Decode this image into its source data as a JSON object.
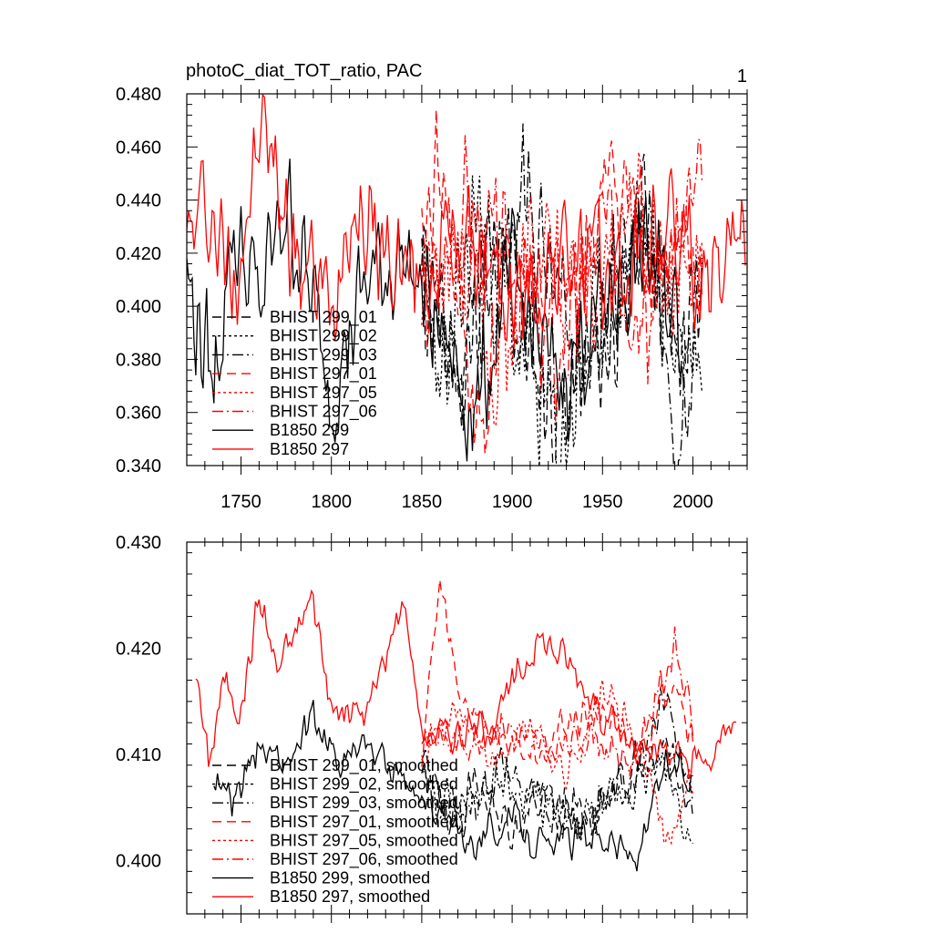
{
  "title_left": "photoC_diat_TOT_ratio, PAC",
  "title_right": "1",
  "colors": {
    "black": "#000000",
    "red": "#ff0000"
  },
  "chart_data": [
    {
      "type": "line",
      "panel": "top",
      "title": "photoC_diat_TOT_ratio, PAC",
      "xlabel": "",
      "ylabel": "",
      "xlim": [
        1720,
        2030
      ],
      "ylim": [
        0.34,
        0.48
      ],
      "xticks": [
        1750,
        1800,
        1850,
        1900,
        1950,
        2000
      ],
      "xtick_labels": [
        "1750",
        "1800",
        "1850",
        "1900",
        "1950",
        "2000"
      ],
      "yticks": [
        0.34,
        0.36,
        0.38,
        0.4,
        0.42,
        0.44,
        0.46,
        0.48
      ],
      "ytick_labels": [
        "0.340",
        "0.360",
        "0.380",
        "0.400",
        "0.420",
        "0.440",
        "0.460",
        "0.480"
      ],
      "legend_position": "bottom-left",
      "series": [
        {
          "name": "BHIST 299_01",
          "color": "#000000",
          "dash": "10,6",
          "x_start": 1850,
          "x_end": 2005,
          "keypoints": [
            [
              1850,
              0.41
            ],
            [
              1860,
              0.39
            ],
            [
              1870,
              0.37
            ],
            [
              1885,
              0.42
            ],
            [
              1900,
              0.4
            ],
            [
              1925,
              0.36
            ],
            [
              1950,
              0.38
            ],
            [
              1975,
              0.44
            ],
            [
              1990,
              0.38
            ],
            [
              2005,
              0.4
            ]
          ],
          "mean": 0.402,
          "amp": 0.035,
          "seed": 11
        },
        {
          "name": "BHIST 299_02",
          "color": "#000000",
          "dash": "3,3",
          "x_start": 1850,
          "x_end": 2005,
          "keypoints": [
            [
              1850,
              0.4
            ],
            [
              1865,
              0.37
            ],
            [
              1880,
              0.44
            ],
            [
              1900,
              0.39
            ],
            [
              1926,
              0.346
            ],
            [
              1950,
              0.4
            ],
            [
              1970,
              0.43
            ],
            [
              1990,
              0.39
            ],
            [
              2005,
              0.38
            ]
          ],
          "mean": 0.4,
          "amp": 0.035,
          "seed": 23
        },
        {
          "name": "BHIST 299_03",
          "color": "#000000",
          "dash": "12,4,2,4",
          "x_start": 1850,
          "x_end": 2005,
          "keypoints": [
            [
              1850,
              0.41
            ],
            [
              1870,
              0.36
            ],
            [
              1890,
              0.42
            ],
            [
              1910,
              0.44
            ],
            [
              1935,
              0.38
            ],
            [
              1955,
              0.41
            ],
            [
              1975,
              0.43
            ],
            [
              1990,
              0.346
            ],
            [
              2005,
              0.4
            ]
          ],
          "mean": 0.401,
          "amp": 0.035,
          "seed": 37
        },
        {
          "name": "BHIST 297_01",
          "color": "#ff0000",
          "dash": "10,6",
          "x_start": 1850,
          "x_end": 2005,
          "keypoints": [
            [
              1850,
              0.42
            ],
            [
              1860,
              0.46
            ],
            [
              1870,
              0.4
            ],
            [
              1882,
              0.35
            ],
            [
              1900,
              0.42
            ],
            [
              1930,
              0.4
            ],
            [
              1957,
              0.45
            ],
            [
              1980,
              0.42
            ],
            [
              2005,
              0.41
            ]
          ],
          "mean": 0.41,
          "amp": 0.032,
          "seed": 41
        },
        {
          "name": "BHIST 297_05",
          "color": "#ff0000",
          "dash": "3,3",
          "x_start": 1850,
          "x_end": 2005,
          "keypoints": [
            [
              1850,
              0.41
            ],
            [
              1870,
              0.43
            ],
            [
              1890,
              0.37
            ],
            [
              1910,
              0.42
            ],
            [
              1940,
              0.4
            ],
            [
              1965,
              0.44
            ],
            [
              1985,
              0.41
            ],
            [
              2005,
              0.42
            ]
          ],
          "mean": 0.41,
          "amp": 0.032,
          "seed": 53
        },
        {
          "name": "BHIST 297_06",
          "color": "#ff0000",
          "dash": "12,4,2,4",
          "x_start": 1850,
          "x_end": 2005,
          "keypoints": [
            [
              1850,
              0.4
            ],
            [
              1875,
              0.44
            ],
            [
              1900,
              0.41
            ],
            [
              1925,
              0.38
            ],
            [
              1950,
              0.43
            ],
            [
              1975,
              0.4
            ],
            [
              2005,
              0.45
            ]
          ],
          "mean": 0.41,
          "amp": 0.032,
          "seed": 67
        },
        {
          "name": "B1850 299",
          "color": "#000000",
          "dash": "",
          "x_start": 1720,
          "x_end": 1995,
          "keypoints": [
            [
              1720,
              0.41
            ],
            [
              1735,
              0.37
            ],
            [
              1745,
              0.43
            ],
            [
              1760,
              0.4
            ],
            [
              1775,
              0.44
            ],
            [
              1790,
              0.4
            ],
            [
              1800,
              0.37
            ],
            [
              1820,
              0.41
            ],
            [
              1840,
              0.42
            ],
            [
              1860,
              0.39
            ],
            [
              1880,
              0.36
            ],
            [
              1900,
              0.41
            ],
            [
              1925,
              0.37
            ],
            [
              1950,
              0.4
            ],
            [
              1975,
              0.42
            ],
            [
              1995,
              0.39
            ]
          ],
          "mean": 0.403,
          "amp": 0.03,
          "seed": 79
        },
        {
          "name": "B1850 297",
          "color": "#ff0000",
          "dash": "",
          "x_start": 1720,
          "x_end": 2029,
          "keypoints": [
            [
              1720,
              0.42
            ],
            [
              1730,
              0.44
            ],
            [
              1745,
              0.41
            ],
            [
              1763,
              0.468
            ],
            [
              1780,
              0.42
            ],
            [
              1800,
              0.4
            ],
            [
              1810,
              0.44
            ],
            [
              1830,
              0.42
            ],
            [
              1850,
              0.41
            ],
            [
              1870,
              0.43
            ],
            [
              1900,
              0.4
            ],
            [
              1930,
              0.42
            ],
            [
              1960,
              0.41
            ],
            [
              1990,
              0.43
            ],
            [
              2010,
              0.4
            ],
            [
              2029,
              0.43
            ]
          ],
          "mean": 0.413,
          "amp": 0.028,
          "seed": 97
        }
      ]
    },
    {
      "type": "line",
      "panel": "bottom",
      "title": "",
      "xlabel": "",
      "ylabel": "",
      "xlim": [
        1720,
        2030
      ],
      "ylim": [
        0.395,
        0.43
      ],
      "xticks": [
        1750,
        1800,
        1850,
        1900,
        1950,
        2000
      ],
      "yticks": [
        0.4,
        0.41,
        0.42,
        0.43
      ],
      "ytick_labels": [
        "0.400",
        "0.410",
        "0.420",
        "0.430"
      ],
      "legend_position": "bottom-left",
      "series": [
        {
          "name": "BHIST 299_01, smoothed",
          "color": "#000000",
          "dash": "10,6",
          "x_start": 1850,
          "x_end": 2000,
          "keypoints": [
            [
              1850,
              0.408
            ],
            [
              1865,
              0.404
            ],
            [
              1880,
              0.407
            ],
            [
              1900,
              0.403
            ],
            [
              1920,
              0.406
            ],
            [
              1940,
              0.404
            ],
            [
              1960,
              0.407
            ],
            [
              1985,
              0.412
            ],
            [
              2000,
              0.405
            ]
          ],
          "mean": 0.406,
          "amp": 0.005,
          "seed": 13
        },
        {
          "name": "BHIST 299_02, smoothed",
          "color": "#000000",
          "dash": "3,3",
          "x_start": 1850,
          "x_end": 2000,
          "keypoints": [
            [
              1850,
              0.407
            ],
            [
              1870,
              0.405
            ],
            [
              1890,
              0.408
            ],
            [
              1910,
              0.406
            ],
            [
              1935,
              0.403
            ],
            [
              1960,
              0.406
            ],
            [
              1985,
              0.409
            ],
            [
              2000,
              0.401
            ]
          ],
          "mean": 0.406,
          "amp": 0.005,
          "seed": 29
        },
        {
          "name": "BHIST 299_03, smoothed",
          "color": "#000000",
          "dash": "12,4,2,4",
          "x_start": 1850,
          "x_end": 2000,
          "keypoints": [
            [
              1850,
              0.409
            ],
            [
              1870,
              0.404
            ],
            [
              1895,
              0.409
            ],
            [
              1915,
              0.405
            ],
            [
              1940,
              0.404
            ],
            [
              1960,
              0.407
            ],
            [
              1985,
              0.416
            ],
            [
              2000,
              0.404
            ]
          ],
          "mean": 0.406,
          "amp": 0.005,
          "seed": 43
        },
        {
          "name": "BHIST 297_01, smoothed",
          "color": "#ff0000",
          "dash": "10,6",
          "x_start": 1850,
          "x_end": 2000,
          "keypoints": [
            [
              1850,
              0.41
            ],
            [
              1860,
              0.426
            ],
            [
              1870,
              0.416
            ],
            [
              1890,
              0.412
            ],
            [
              1910,
              0.41
            ],
            [
              1930,
              0.413
            ],
            [
              1950,
              0.414
            ],
            [
              1970,
              0.41
            ],
            [
              1990,
              0.418
            ],
            [
              2000,
              0.411
            ]
          ],
          "mean": 0.412,
          "amp": 0.004,
          "seed": 59
        },
        {
          "name": "BHIST 297_05, smoothed",
          "color": "#ff0000",
          "dash": "3,3",
          "x_start": 1850,
          "x_end": 2000,
          "keypoints": [
            [
              1850,
              0.411
            ],
            [
              1870,
              0.414
            ],
            [
              1890,
              0.409
            ],
            [
              1910,
              0.413
            ],
            [
              1930,
              0.408
            ],
            [
              1950,
              0.416
            ],
            [
              1970,
              0.411
            ],
            [
              1985,
              0.402
            ],
            [
              2000,
              0.408
            ]
          ],
          "mean": 0.41,
          "amp": 0.004,
          "seed": 71
        },
        {
          "name": "BHIST 297_06, smoothed",
          "color": "#ff0000",
          "dash": "12,4,2,4",
          "x_start": 1850,
          "x_end": 2000,
          "keypoints": [
            [
              1850,
              0.412
            ],
            [
              1870,
              0.411
            ],
            [
              1895,
              0.413
            ],
            [
              1920,
              0.41
            ],
            [
              1945,
              0.412
            ],
            [
              1965,
              0.409
            ],
            [
              1990,
              0.42
            ],
            [
              2000,
              0.413
            ]
          ],
          "mean": 0.411,
          "amp": 0.004,
          "seed": 83
        },
        {
          "name": "B1850 299, smoothed",
          "color": "#000000",
          "dash": "",
          "x_start": 1735,
          "x_end": 2000,
          "keypoints": [
            [
              1735,
              0.408
            ],
            [
              1745,
              0.406
            ],
            [
              1760,
              0.411
            ],
            [
              1775,
              0.409
            ],
            [
              1790,
              0.413
            ],
            [
              1805,
              0.409
            ],
            [
              1820,
              0.411
            ],
            [
              1840,
              0.407
            ],
            [
              1860,
              0.404
            ],
            [
              1880,
              0.402
            ],
            [
              1900,
              0.404
            ],
            [
              1920,
              0.401
            ],
            [
              1945,
              0.403
            ],
            [
              1970,
              0.4
            ],
            [
              1985,
              0.409
            ],
            [
              2000,
              0.408
            ]
          ],
          "mean": 0.406,
          "amp": 0.004,
          "seed": 89
        },
        {
          "name": "B1850 297, smoothed",
          "color": "#ff0000",
          "dash": "",
          "x_start": 1725,
          "x_end": 2024,
          "keypoints": [
            [
              1725,
              0.418
            ],
            [
              1732,
              0.409
            ],
            [
              1740,
              0.417
            ],
            [
              1750,
              0.414
            ],
            [
              1760,
              0.425
            ],
            [
              1770,
              0.418
            ],
            [
              1790,
              0.425
            ],
            [
              1800,
              0.414
            ],
            [
              1820,
              0.414
            ],
            [
              1840,
              0.425
            ],
            [
              1850,
              0.412
            ],
            [
              1870,
              0.412
            ],
            [
              1890,
              0.413
            ],
            [
              1905,
              0.418
            ],
            [
              1915,
              0.421
            ],
            [
              1930,
              0.419
            ],
            [
              1950,
              0.414
            ],
            [
              1970,
              0.41
            ],
            [
              1990,
              0.41
            ],
            [
              2010,
              0.409
            ],
            [
              2024,
              0.415
            ]
          ],
          "mean": 0.414,
          "amp": 0.004,
          "seed": 101
        }
      ]
    }
  ]
}
